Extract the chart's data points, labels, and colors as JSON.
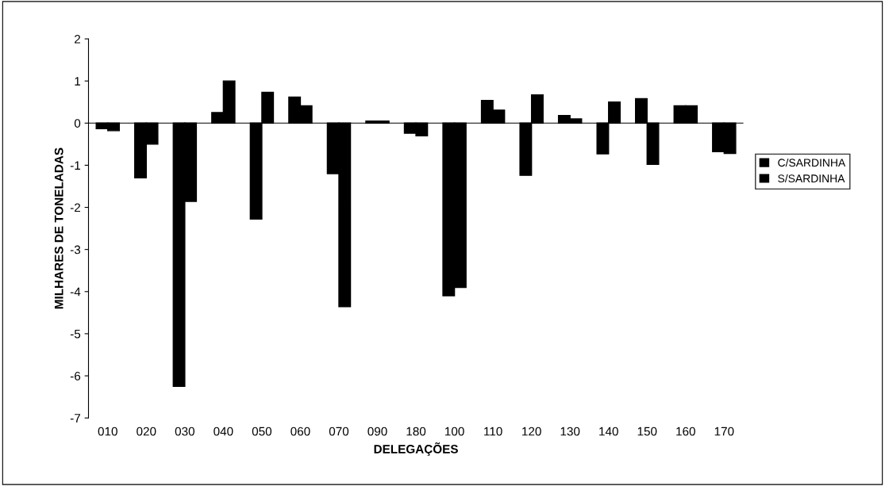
{
  "chart_data": {
    "type": "bar",
    "xlabel": "DELEGAÇÕES",
    "ylabel": "MILHARES DE TONELADAS",
    "categories": [
      "010",
      "020",
      "030",
      "040",
      "050",
      "060",
      "070",
      "090",
      "180",
      "100",
      "110",
      "120",
      "130",
      "140",
      "150",
      "160",
      "170"
    ],
    "series": [
      {
        "name": "C/SARDINHA",
        "color": "#000000",
        "values": [
          -0.13,
          -1.3,
          -6.25,
          0.25,
          -2.28,
          0.62,
          -1.2,
          0.05,
          -0.24,
          -4.1,
          0.54,
          -1.24,
          0.18,
          -0.73,
          0.58,
          0.41,
          -0.68
        ]
      },
      {
        "name": "S/SARDINHA",
        "color": "#000000",
        "values": [
          -0.18,
          -0.5,
          -1.86,
          1.0,
          0.73,
          0.41,
          -4.36,
          0.05,
          -0.3,
          -3.9,
          0.31,
          0.67,
          0.1,
          0.5,
          -0.98,
          0.41,
          -0.72
        ]
      }
    ],
    "ylim": [
      -7,
      2
    ],
    "yticks": [
      -7,
      -6,
      -5,
      -4,
      -3,
      -2,
      -1,
      0,
      1,
      2
    ],
    "legend": "right"
  }
}
